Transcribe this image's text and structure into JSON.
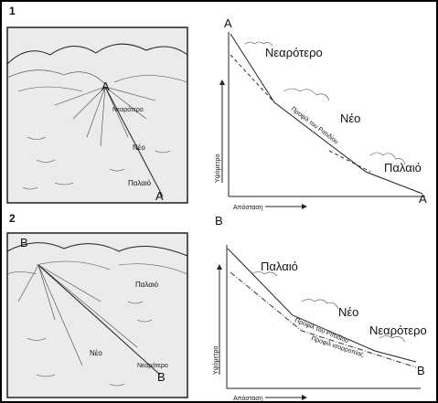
{
  "panels": [
    {
      "number": "1",
      "sketch": {
        "apex": "A",
        "zones": [
          "Νεαρότερο",
          "Νέο",
          "Παλαιό"
        ],
        "end": "A"
      },
      "profile": {
        "start": "A",
        "zones": [
          "Νεαρότερο",
          "Νέο",
          "Παλαιό"
        ],
        "end": "A",
        "y_axis": "Υψόμετρο",
        "x_axis": "Απόσταση",
        "fan_profile": "Προφίλ του Ριπιδίου"
      }
    },
    {
      "number": "2",
      "sketch": {
        "apex": "B",
        "zones": [
          "Παλαιό",
          "Νέο",
          "Νεαρότερο"
        ],
        "end": "B"
      },
      "profile": {
        "start": "B",
        "zones": [
          "Παλαιό",
          "Νέο",
          "Νεαρότερο"
        ],
        "end": "B",
        "y_axis": "Υψόμετρο",
        "x_axis": "Απόσταση",
        "fan_profile": "Προφίλ του Ριπιδίου",
        "equilibrium_profile": "Προφίλ ισορροπίας"
      }
    }
  ]
}
